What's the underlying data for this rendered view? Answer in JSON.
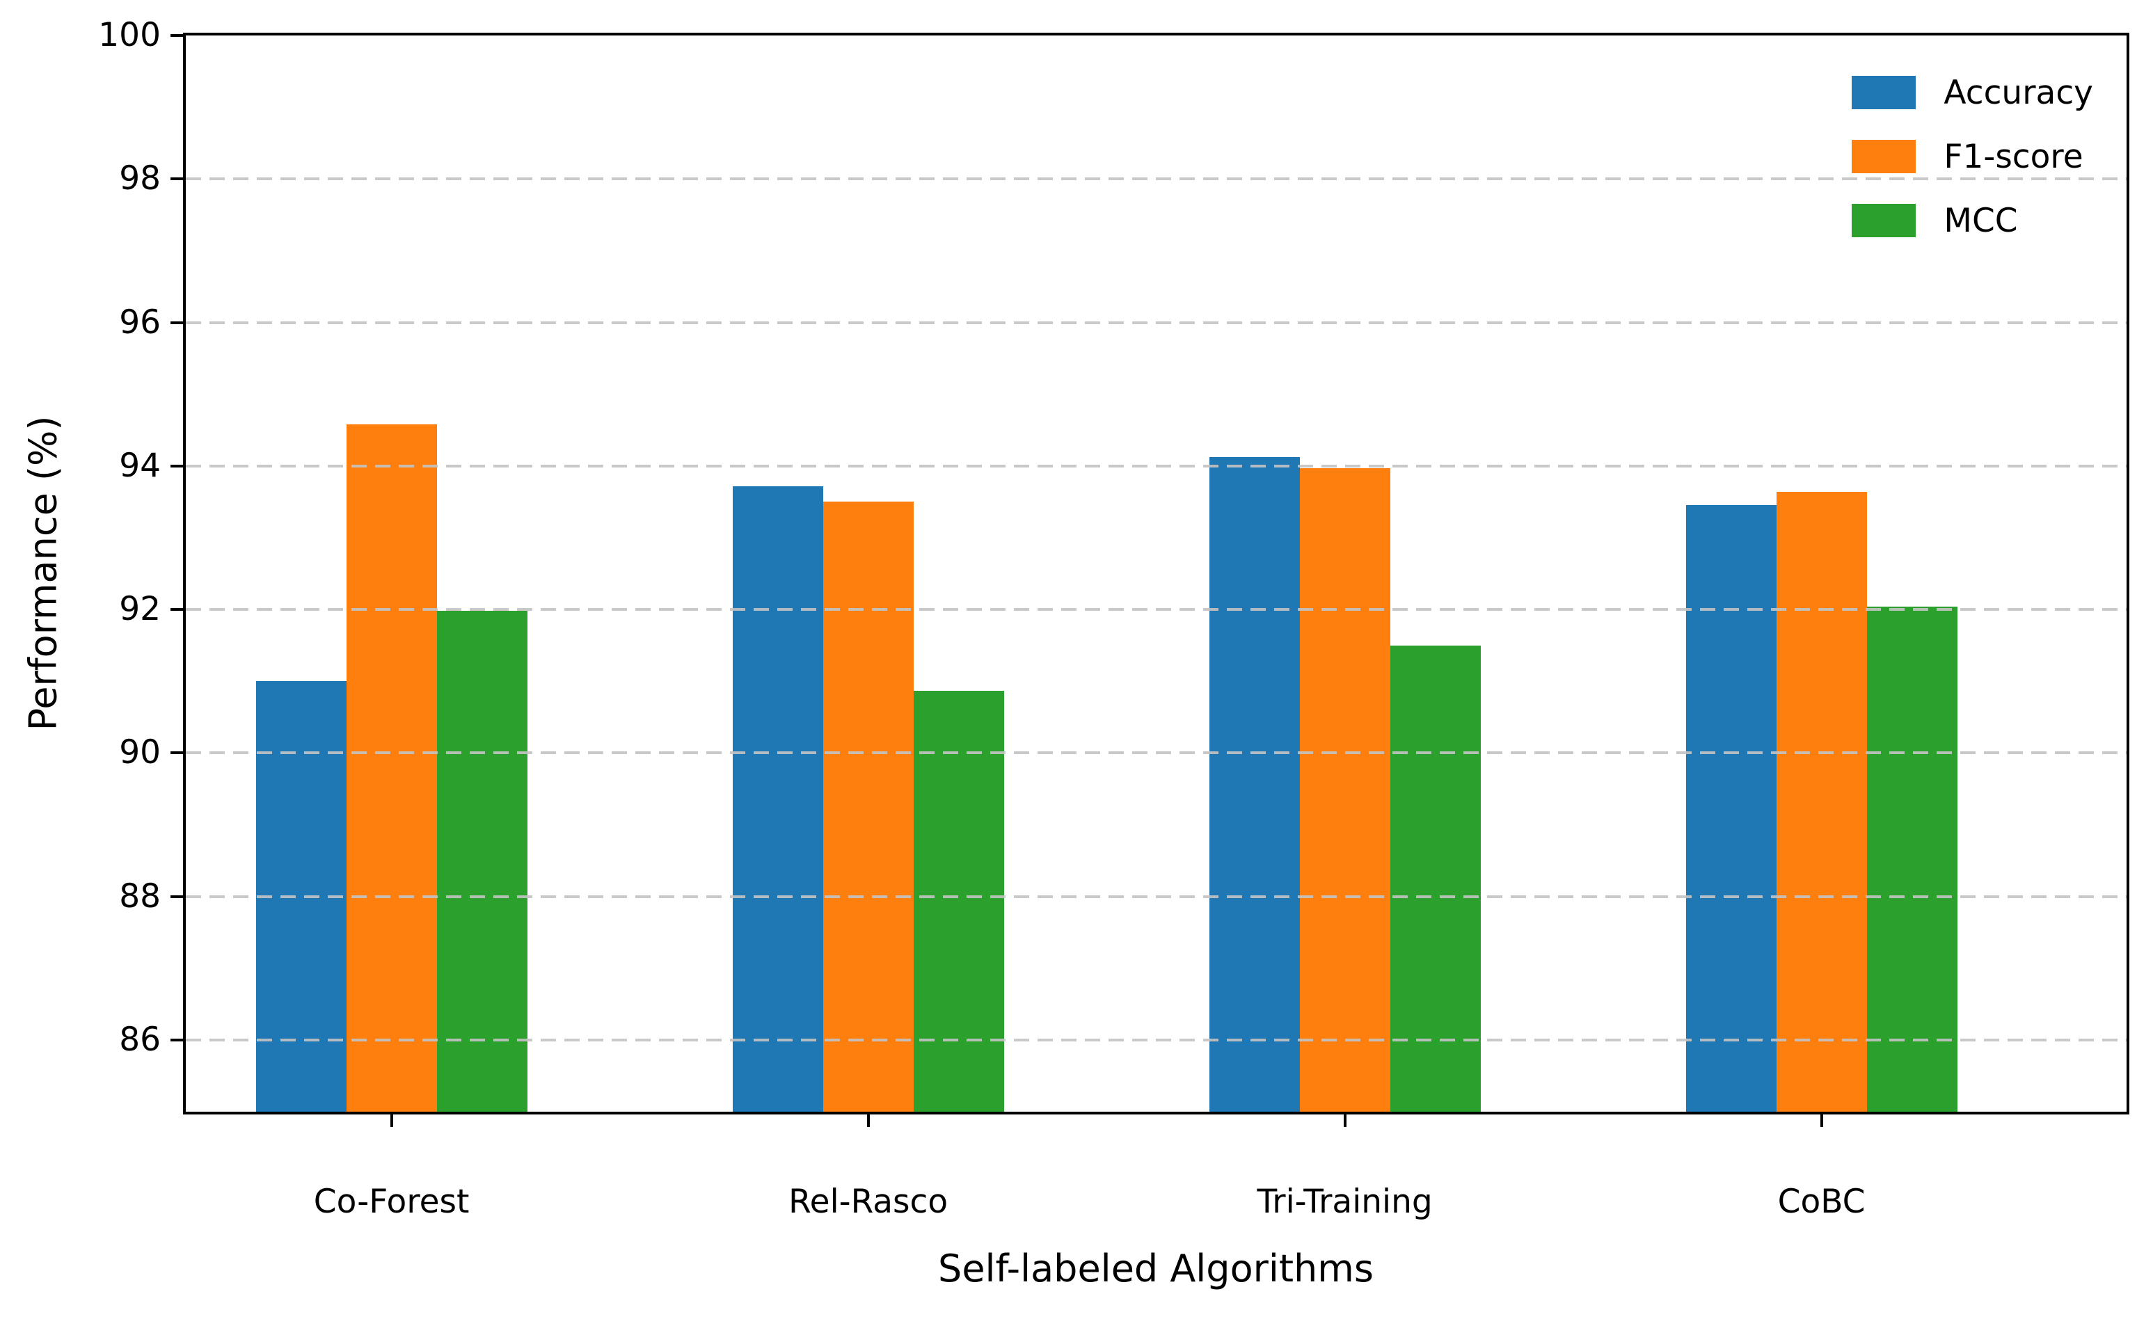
{
  "chart_data": {
    "type": "bar",
    "title": "",
    "xlabel": "Self-labeled Algorithms",
    "ylabel": "Performance (%)",
    "categories": [
      "Co-Forest",
      "Rel-Rasco",
      "Tri-Training",
      "CoBC"
    ],
    "series": [
      {
        "name": "Accuracy",
        "color": "#1f77b4",
        "values": [
          91.0,
          93.72,
          94.12,
          93.46
        ]
      },
      {
        "name": "F1-score",
        "color": "#ff7f0e",
        "values": [
          94.58,
          93.5,
          93.97,
          93.64
        ]
      },
      {
        "name": "MCC",
        "color": "#2ca02c",
        "values": [
          91.98,
          90.87,
          91.5,
          92.04
        ]
      }
    ],
    "ylim": [
      85,
      100
    ],
    "yticks": [
      86,
      88,
      90,
      92,
      94,
      96,
      98,
      100
    ],
    "grid": "horizontal-dashed-over-bars",
    "gridline_color": "#c3c3c3",
    "legend_position": "upper-right",
    "legend_frame": false,
    "background_color": "#ffffff",
    "spine_color": "#000000"
  }
}
